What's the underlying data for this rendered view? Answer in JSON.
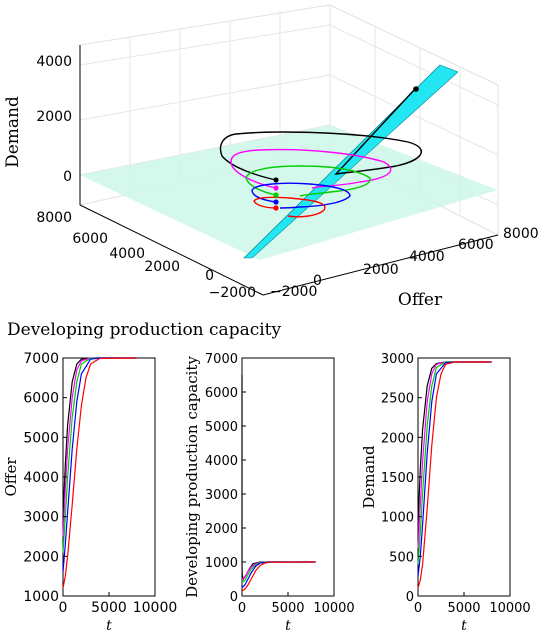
{
  "chart_data": [
    {
      "type": "line3d",
      "zlabel": "Demand",
      "xlabel": "Offer",
      "section_title": "Developing production capacity",
      "z_ticks": [
        "0",
        "2000",
        "4000"
      ],
      "depth_ticks": [
        "8000",
        "6000",
        "4000",
        "2000",
        "0",
        "−2000"
      ],
      "offer_ticks": [
        "−2000",
        "0",
        "2000",
        "4000",
        "6000",
        "8000"
      ],
      "plane_color": "#ccf7e8",
      "cone_color": "#22e6f2",
      "grid": true,
      "series_colors": [
        "#000000",
        "#ff00ff",
        "#00cc00",
        "#0000ff",
        "#ff0000"
      ]
    },
    {
      "type": "line",
      "ylabel": "Offer",
      "xlabel": "t",
      "xlim": [
        0,
        10000
      ],
      "ylim": [
        1000,
        7000
      ],
      "xticks": [
        "0",
        "5000",
        "10000"
      ],
      "yticks": [
        "1000",
        "2000",
        "3000",
        "4000",
        "5000",
        "6000",
        "7000"
      ],
      "series": [
        {
          "color": "#000000",
          "x": [
            0,
            250,
            500,
            1000,
            1500,
            2000,
            3000,
            4000,
            8000
          ],
          "y": [
            3000,
            4300,
            5300,
            6400,
            6850,
            6970,
            7000,
            7000,
            7000
          ]
        },
        {
          "color": "#ff00ff",
          "x": [
            0,
            250,
            500,
            1000,
            1500,
            2000,
            3000,
            4000,
            8000
          ],
          "y": [
            2500,
            3700,
            4700,
            6000,
            6700,
            6930,
            7000,
            7000,
            7000
          ]
        },
        {
          "color": "#00cc00",
          "x": [
            0,
            250,
            500,
            1000,
            1500,
            2000,
            3000,
            4000,
            8000
          ],
          "y": [
            2100,
            3000,
            4000,
            5500,
            6400,
            6850,
            6990,
            7000,
            7000
          ]
        },
        {
          "color": "#0000ff",
          "x": [
            0,
            250,
            500,
            1000,
            1500,
            2000,
            3000,
            4000,
            8000
          ],
          "y": [
            1600,
            2300,
            3100,
            4700,
            5900,
            6600,
            6970,
            7000,
            7000
          ]
        },
        {
          "color": "#ff0000",
          "x": [
            0,
            250,
            500,
            1000,
            1500,
            2000,
            2500,
            3000,
            4000,
            8000
          ],
          "y": [
            1200,
            1500,
            2000,
            3300,
            4700,
            5800,
            6500,
            6850,
            6990,
            7000
          ]
        }
      ]
    },
    {
      "type": "line",
      "ylabel": "Developing production capacity",
      "xlabel": "t",
      "xlim": [
        0,
        10000
      ],
      "ylim": [
        0,
        7000
      ],
      "xticks": [
        "0",
        "5000",
        "10000"
      ],
      "yticks": [
        "0",
        "1000",
        "2000",
        "3000",
        "4000",
        "5000",
        "6000",
        "7000"
      ],
      "series": [
        {
          "color": "#000000",
          "x": [
            0,
            0,
            30,
            150,
            400,
            800,
            1200,
            2000,
            3000,
            8000
          ],
          "y": [
            6500,
            900,
            600,
            500,
            600,
            800,
            950,
            1000,
            1000,
            1000
          ]
        },
        {
          "color": "#ff00ff",
          "x": [
            0,
            300,
            600,
            1000,
            1500,
            2000,
            3000,
            8000
          ],
          "y": [
            500,
            550,
            700,
            850,
            950,
            990,
            1000,
            1000
          ]
        },
        {
          "color": "#00cc00",
          "x": [
            0,
            300,
            600,
            1000,
            1500,
            2000,
            3000,
            8000
          ],
          "y": [
            400,
            450,
            600,
            780,
            920,
            985,
            1000,
            1000
          ]
        },
        {
          "color": "#0000ff",
          "x": [
            0,
            300,
            600,
            1000,
            1500,
            2000,
            3000,
            8000
          ],
          "y": [
            250,
            320,
            470,
            680,
            880,
            970,
            1000,
            1000
          ]
        },
        {
          "color": "#ff0000",
          "x": [
            0,
            300,
            600,
            1000,
            1500,
            2000,
            2500,
            3000,
            8000
          ],
          "y": [
            150,
            200,
            300,
            500,
            750,
            900,
            970,
            995,
            1000
          ]
        }
      ]
    },
    {
      "type": "line",
      "ylabel": "Demand",
      "xlabel": "t",
      "xlim": [
        0,
        10000
      ],
      "ylim": [
        0,
        3000
      ],
      "xticks": [
        "0",
        "5000",
        "10000"
      ],
      "yticks": [
        "0",
        "500",
        "1000",
        "1500",
        "2000",
        "2500",
        "3000"
      ],
      "series": [
        {
          "color": "#000000",
          "x": [
            0,
            250,
            500,
            1000,
            1500,
            2000,
            3000,
            4000,
            8000
          ],
          "y": [
            900,
            1600,
            2100,
            2650,
            2870,
            2930,
            2950,
            2950,
            2950
          ]
        },
        {
          "color": "#ff00ff",
          "x": [
            0,
            250,
            500,
            1000,
            1500,
            2000,
            3000,
            4000,
            8000
          ],
          "y": [
            600,
            1150,
            1700,
            2450,
            2800,
            2920,
            2950,
            2950,
            2950
          ]
        },
        {
          "color": "#00cc00",
          "x": [
            0,
            250,
            500,
            1000,
            1500,
            2000,
            3000,
            4000,
            8000
          ],
          "y": [
            400,
            800,
            1300,
            2150,
            2650,
            2880,
            2948,
            2950,
            2950
          ]
        },
        {
          "color": "#0000ff",
          "x": [
            0,
            250,
            500,
            1000,
            1500,
            2000,
            3000,
            4000,
            8000
          ],
          "y": [
            250,
            500,
            900,
            1800,
            2450,
            2800,
            2940,
            2950,
            2950
          ]
        },
        {
          "color": "#ff0000",
          "x": [
            0,
            250,
            500,
            1000,
            1500,
            2000,
            2500,
            3000,
            4000,
            8000
          ],
          "y": [
            100,
            200,
            400,
            1100,
            1900,
            2500,
            2800,
            2920,
            2950,
            2950
          ]
        }
      ]
    }
  ]
}
